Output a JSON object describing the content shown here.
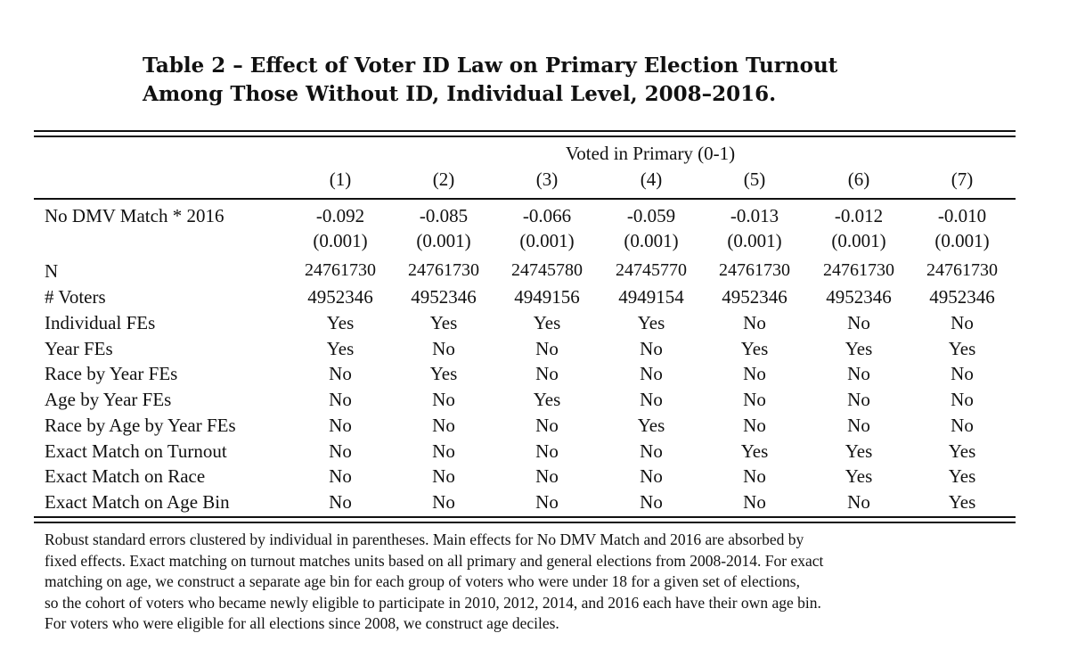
{
  "title": {
    "line1": "Table 2 – Effect of Voter ID Law on Primary Election Turnout",
    "line2": "Among Those Without ID, Individual Level, 2008–2016."
  },
  "table": {
    "spanner": "Voted in Primary (0-1)",
    "columns": [
      "(1)",
      "(2)",
      "(3)",
      "(4)",
      "(5)",
      "(6)",
      "(7)"
    ],
    "coef_row": {
      "label": "No DMV Match * 2016",
      "values": [
        "-0.092",
        "-0.085",
        "-0.066",
        "-0.059",
        "-0.013",
        "-0.012",
        "-0.010"
      ],
      "se": [
        "(0.001)",
        "(0.001)",
        "(0.001)",
        "(0.001)",
        "(0.001)",
        "(0.001)",
        "(0.001)"
      ]
    },
    "rows": [
      {
        "label": "N",
        "values": [
          "24761730",
          "24761730",
          "24745780",
          "24745770",
          "24761730",
          "24761730",
          "24761730"
        ]
      },
      {
        "label": "# Voters",
        "values": [
          "4952346",
          "4952346",
          "4949156",
          "4949154",
          "4952346",
          "4952346",
          "4952346"
        ]
      },
      {
        "label": "Individual FEs",
        "values": [
          "Yes",
          "Yes",
          "Yes",
          "Yes",
          "No",
          "No",
          "No"
        ]
      },
      {
        "label": "Year FEs",
        "values": [
          "Yes",
          "No",
          "No",
          "No",
          "Yes",
          "Yes",
          "Yes"
        ]
      },
      {
        "label": "Race by Year FEs",
        "values": [
          "No",
          "Yes",
          "No",
          "No",
          "No",
          "No",
          "No"
        ]
      },
      {
        "label": "Age by Year FEs",
        "values": [
          "No",
          "No",
          "Yes",
          "No",
          "No",
          "No",
          "No"
        ]
      },
      {
        "label": "Race by Age by Year FEs",
        "values": [
          "No",
          "No",
          "No",
          "Yes",
          "No",
          "No",
          "No"
        ]
      },
      {
        "label": "Exact Match on Turnout",
        "values": [
          "No",
          "No",
          "No",
          "No",
          "Yes",
          "Yes",
          "Yes"
        ]
      },
      {
        "label": "Exact Match on Race",
        "values": [
          "No",
          "No",
          "No",
          "No",
          "No",
          "Yes",
          "Yes"
        ]
      },
      {
        "label": "Exact Match on Age Bin",
        "values": [
          "No",
          "No",
          "No",
          "No",
          "No",
          "No",
          "Yes"
        ]
      }
    ]
  },
  "notes": [
    "Robust standard errors clustered by individual in parentheses. Main effects for No DMV Match and 2016 are absorbed by",
    "fixed effects. Exact matching on turnout matches units based on all primary and general elections from 2008-2014. For exact",
    "matching on age, we construct a separate age bin for each group of voters who were under 18 for a given set of elections,",
    "so the cohort of voters who became newly eligible to participate in 2010, 2012, 2014, and 2016 each have their own age bin.",
    "For voters who were eligible for all elections since 2008, we construct age deciles."
  ]
}
